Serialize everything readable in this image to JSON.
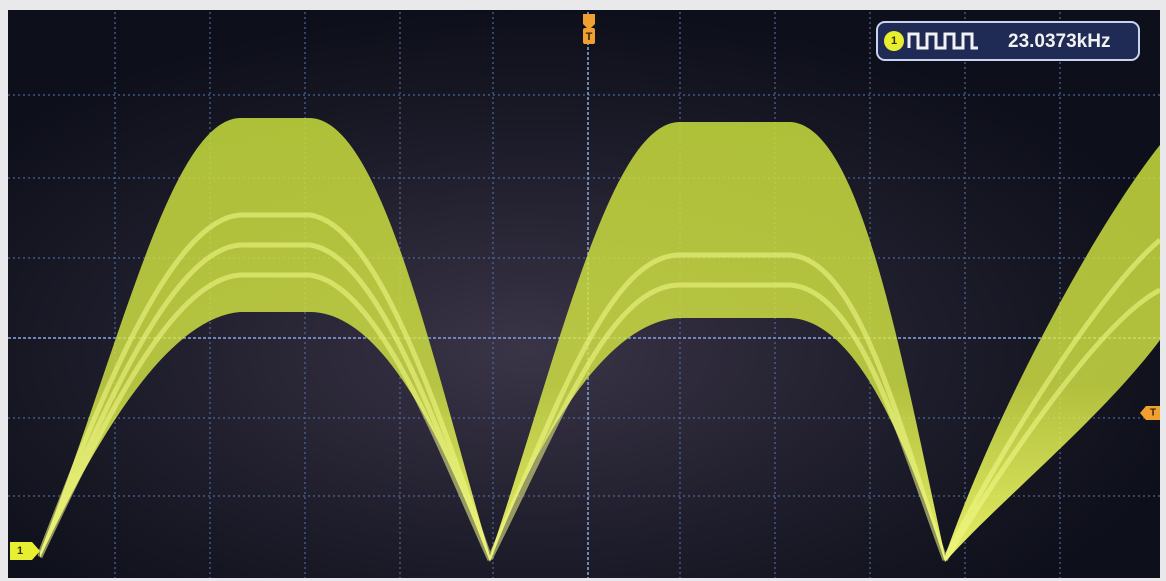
{
  "channel_marker": "1",
  "trigger_position_marker": "T",
  "trigger_level_marker": "T",
  "frequency_readout": {
    "channel": "1",
    "value": "23.0373kHz"
  }
}
